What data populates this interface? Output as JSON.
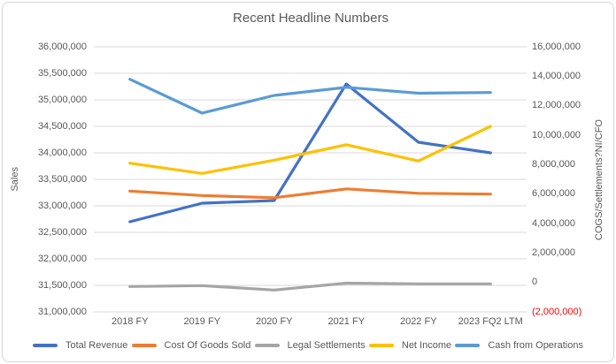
{
  "chart_data": {
    "type": "line",
    "title": "Recent Headline Numbers",
    "categories": [
      "2018 FY",
      "2019 FY",
      "2020 FY",
      "2021 FY",
      "2022 FY",
      "2023 FQ2 LTM"
    ],
    "left_axis": {
      "label": "Sales",
      "min": 31000000,
      "max": 36000000,
      "step": 500000,
      "ticks": [
        "36,000,000",
        "35,500,000",
        "35,000,000",
        "34,500,000",
        "34,000,000",
        "33,500,000",
        "33,000,000",
        "32,500,000",
        "32,000,000",
        "31,500,000",
        "31,000,000"
      ]
    },
    "right_axis": {
      "label": "COGS/Settlements?NI/CFO",
      "min": -2000000,
      "max": 16000000,
      "step": 2000000,
      "ticks": [
        "16,000,000",
        "14,000,000",
        "12,000,000",
        "10,000,000",
        "8,000,000",
        "6,000,000",
        "4,000,000",
        "2,000,000",
        "0",
        "(2,000,000)"
      ],
      "negative_tick_color": "#ff0000"
    },
    "series": [
      {
        "name": "Total Revenue",
        "axis": "left",
        "color": "#4472c4",
        "values": [
          32700000,
          33050000,
          33100000,
          35300000,
          34200000,
          34000000
        ]
      },
      {
        "name": "Cost Of Goods Sold",
        "axis": "right",
        "color": "#ed7d31",
        "values": [
          6200000,
          5900000,
          5750000,
          6350000,
          6050000,
          6000000
        ]
      },
      {
        "name": "Legal Settlements",
        "axis": "right",
        "color": "#a5a5a5",
        "values": [
          -280000,
          -220000,
          -520000,
          -50000,
          -100000,
          -100000
        ]
      },
      {
        "name": "Net Income",
        "axis": "right",
        "color": "#ffc000",
        "values": [
          8100000,
          7400000,
          8300000,
          9350000,
          8250000,
          10600000
        ]
      },
      {
        "name": "Cash from Operations",
        "axis": "right",
        "color": "#5b9bd5",
        "values": [
          13800000,
          11500000,
          12700000,
          13250000,
          12850000,
          12900000
        ]
      }
    ],
    "legend_position": "bottom",
    "grid": true,
    "gridline_color": "#d9d9d9",
    "text_color": "#595959"
  }
}
